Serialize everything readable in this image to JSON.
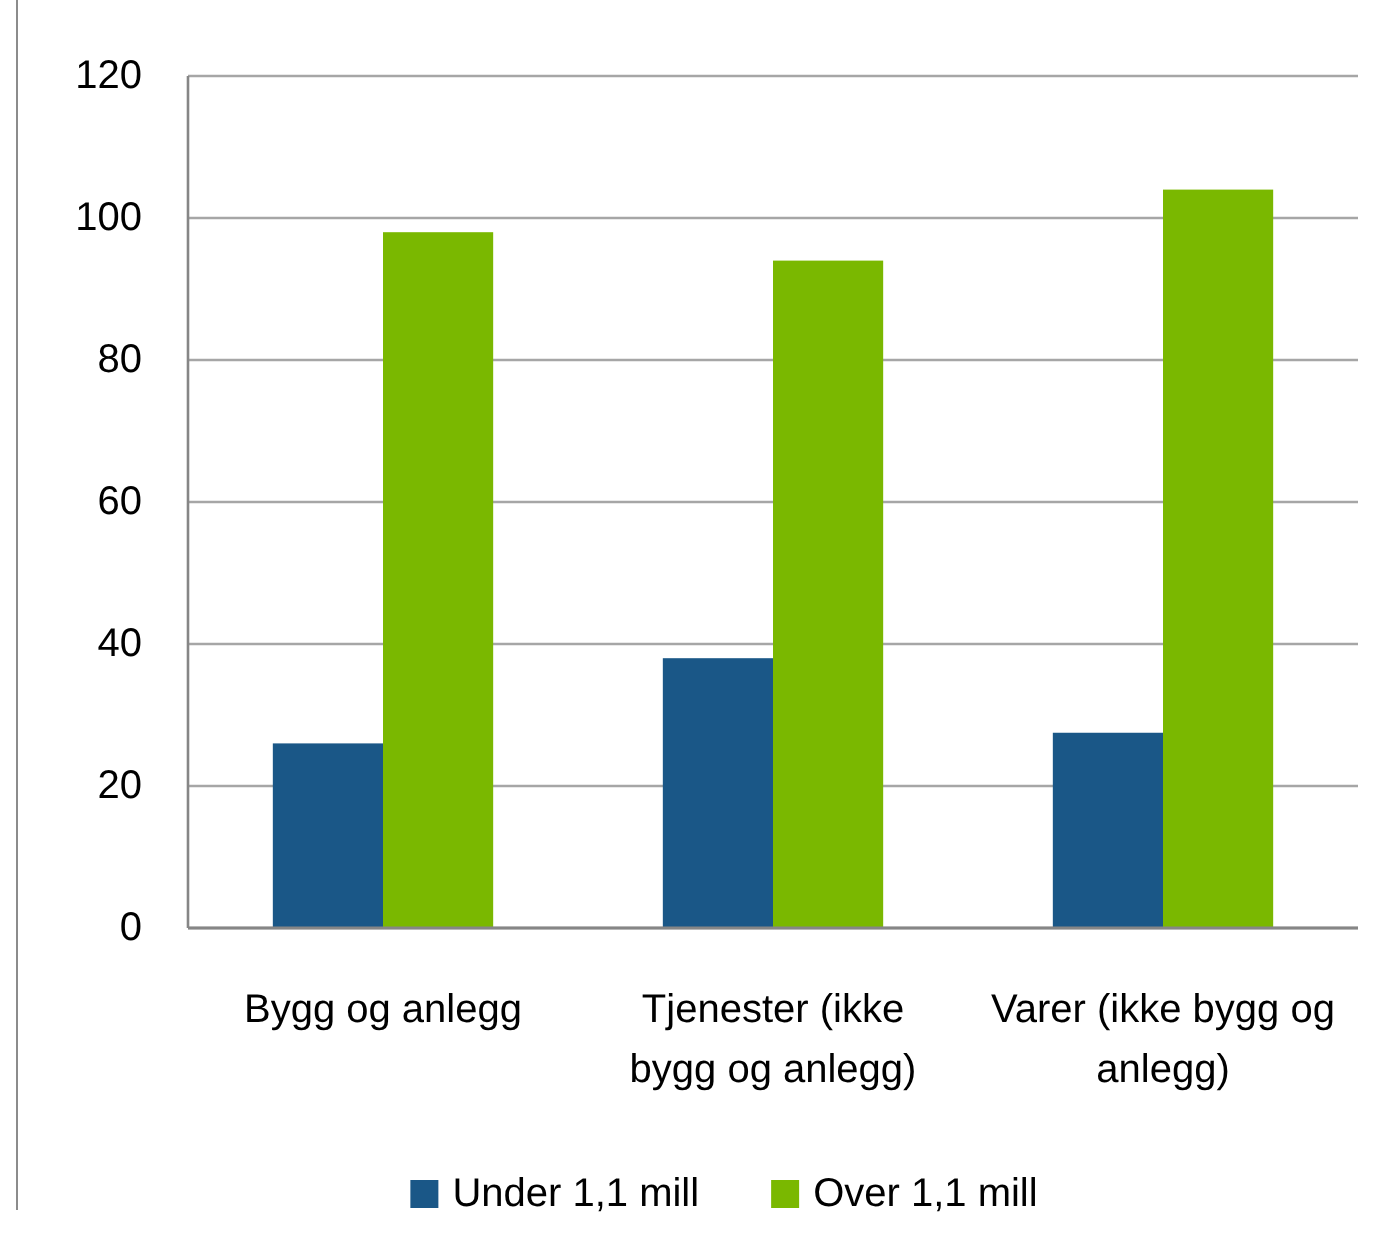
{
  "chart_data": {
    "type": "bar",
    "categories": [
      "Bygg og anlegg",
      "Tjenester (ikke bygg og anlegg)",
      "Varer (ikke bygg og anlegg)"
    ],
    "series": [
      {
        "name": "Under 1,1 mill",
        "color": "#1a5787",
        "values": [
          26,
          38,
          27.5
        ]
      },
      {
        "name": "Over 1,1 mill",
        "color": "#7ab800",
        "values": [
          98,
          94,
          104
        ]
      }
    ],
    "ylim": [
      0,
      120
    ],
    "yticks": [
      0,
      20,
      40,
      60,
      80,
      100,
      120
    ],
    "grid": "y",
    "legend": "bottom"
  }
}
